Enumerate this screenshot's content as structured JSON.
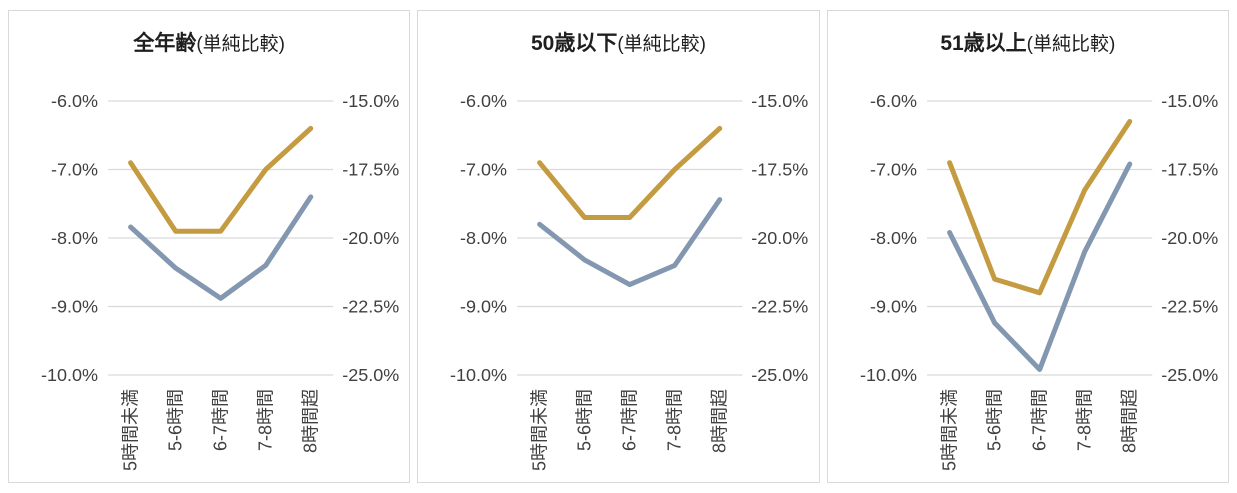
{
  "page": {
    "background": "#FFFFFF",
    "panel_border": "#D9D9D9",
    "gridline_color": "#D9D9D9",
    "tick_label_color": "#404040",
    "title_color": "#1F1F1F"
  },
  "chart_data": [
    {
      "type": "line",
      "title": "全年齢",
      "title_suffix": "(単純比較)",
      "categories": [
        "5時間未満",
        "5-6時間",
        "6-7時間",
        "7-8時間",
        "8時間超"
      ],
      "left_axis": {
        "ticks": [
          "-6.0%",
          "-7.0%",
          "-8.0%",
          "-9.0%",
          "-10.0%"
        ],
        "max": -6,
        "min": -10
      },
      "right_axis": {
        "ticks": [
          "-15.0%",
          "-17.5%",
          "-20.0%",
          "-22.5%",
          "-25.0%"
        ],
        "max": -15,
        "min": -25
      },
      "grid": true,
      "legend": "none",
      "series": [
        {
          "axis": "left",
          "color": "#C49B40",
          "values": [
            -6.9,
            -7.9,
            -7.9,
            -7.0,
            -6.4
          ]
        },
        {
          "axis": "right",
          "color": "#8497B0",
          "values": [
            -19.6,
            -21.1,
            -22.2,
            -21.0,
            -18.5
          ]
        }
      ]
    },
    {
      "type": "line",
      "title": "50歳以下",
      "title_suffix": "(単純比較)",
      "categories": [
        "5時間未満",
        "5-6時間",
        "6-7時間",
        "7-8時間",
        "8時間超"
      ],
      "left_axis": {
        "ticks": [
          "-6.0%",
          "-7.0%",
          "-8.0%",
          "-9.0%",
          "-10.0%"
        ],
        "max": -6,
        "min": -10
      },
      "right_axis": {
        "ticks": [
          "-15.0%",
          "-17.5%",
          "-20.0%",
          "-22.5%",
          "-25.0%"
        ],
        "max": -15,
        "min": -25
      },
      "grid": true,
      "legend": "none",
      "series": [
        {
          "axis": "left",
          "color": "#C49B40",
          "values": [
            -6.9,
            -7.7,
            -7.7,
            -7.0,
            -6.4
          ]
        },
        {
          "axis": "right",
          "color": "#8497B0",
          "values": [
            -19.5,
            -20.8,
            -21.7,
            -21.0,
            -18.6
          ]
        }
      ]
    },
    {
      "type": "line",
      "title": "51歳以上",
      "title_suffix": "(単純比較)",
      "categories": [
        "5時間未満",
        "5-6時間",
        "6-7時間",
        "7-8時間",
        "8時間超"
      ],
      "left_axis": {
        "ticks": [
          "-6.0%",
          "-7.0%",
          "-8.0%",
          "-9.0%",
          "-10.0%"
        ],
        "max": -6,
        "min": -10
      },
      "right_axis": {
        "ticks": [
          "-15.0%",
          "-17.5%",
          "-20.0%",
          "-22.5%",
          "-25.0%"
        ],
        "max": -15,
        "min": -25
      },
      "grid": true,
      "legend": "none",
      "series": [
        {
          "axis": "left",
          "color": "#C49B40",
          "values": [
            -6.9,
            -8.6,
            -8.8,
            -7.3,
            -6.3
          ]
        },
        {
          "axis": "right",
          "color": "#8497B0",
          "values": [
            -19.8,
            -23.1,
            -24.8,
            -20.5,
            -17.3
          ]
        }
      ]
    }
  ]
}
